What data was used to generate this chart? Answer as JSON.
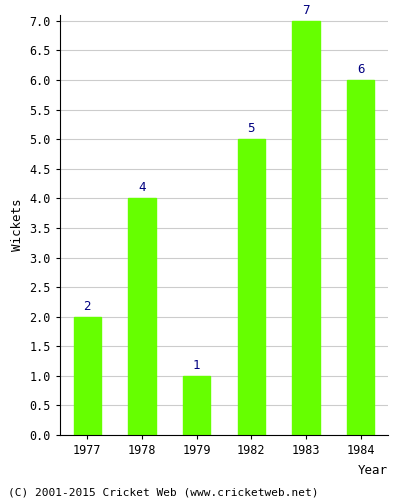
{
  "years": [
    "1977",
    "1978",
    "1979",
    "1982",
    "1983",
    "1984"
  ],
  "wickets": [
    2,
    4,
    1,
    5,
    7,
    6
  ],
  "bar_color": "#66ff00",
  "bar_edge_color": "#66ff00",
  "xlabel": "Year",
  "ylabel": "Wickets",
  "ylim": [
    0,
    7.0
  ],
  "yticks": [
    0.0,
    0.5,
    1.0,
    1.5,
    2.0,
    2.5,
    3.0,
    3.5,
    4.0,
    4.5,
    5.0,
    5.5,
    6.0,
    6.5,
    7.0
  ],
  "annotation_color": "#000080",
  "annotation_fontsize": 9,
  "axis_label_fontsize": 9,
  "tick_fontsize": 8.5,
  "footer_text": "(C) 2001-2015 Cricket Web (www.cricketweb.net)",
  "footer_fontsize": 8,
  "background_color": "#ffffff",
  "grid_color": "#cccccc",
  "bar_width": 0.5
}
